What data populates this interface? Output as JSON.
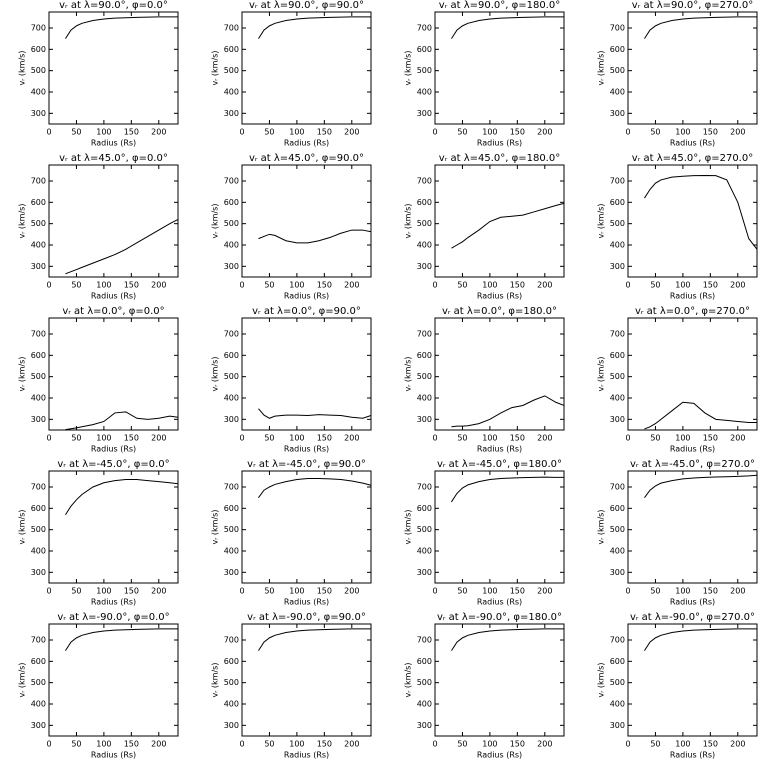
{
  "chart_data": [
    {
      "type": "line",
      "title": "vᵣ at λ=90.0°, φ=0.0°",
      "xlabel": "Radius (Rs)",
      "ylabel": "vᵣ (km/s)",
      "x": [
        30,
        40,
        50,
        60,
        80,
        100,
        120,
        140,
        160,
        180,
        200,
        220,
        235
      ],
      "values": [
        650,
        690,
        710,
        722,
        735,
        742,
        746,
        748,
        750,
        751,
        752,
        752,
        752
      ],
      "xlim": [
        0,
        235
      ],
      "ylim": [
        250,
        775
      ],
      "xticks": [
        0,
        50,
        100,
        150,
        200
      ],
      "yticks": [
        300,
        400,
        500,
        600,
        700
      ]
    },
    {
      "type": "line",
      "title": "vᵣ at λ=90.0°, φ=90.0°",
      "xlabel": "Radius (Rs)",
      "ylabel": "vᵣ (km/s)",
      "x": [
        30,
        40,
        50,
        60,
        80,
        100,
        120,
        140,
        160,
        180,
        200,
        220,
        235
      ],
      "values": [
        650,
        690,
        710,
        722,
        735,
        742,
        746,
        748,
        750,
        751,
        752,
        752,
        752
      ],
      "xlim": [
        0,
        235
      ],
      "ylim": [
        250,
        775
      ],
      "xticks": [
        0,
        50,
        100,
        150,
        200
      ],
      "yticks": [
        300,
        400,
        500,
        600,
        700
      ]
    },
    {
      "type": "line",
      "title": "vᵣ at λ=90.0°, φ=180.0°",
      "xlabel": "Radius (Rs)",
      "ylabel": "vᵣ (km/s)",
      "x": [
        30,
        40,
        50,
        60,
        80,
        100,
        120,
        140,
        160,
        180,
        200,
        220,
        235
      ],
      "values": [
        650,
        690,
        710,
        722,
        735,
        742,
        746,
        748,
        750,
        751,
        752,
        752,
        752
      ],
      "xlim": [
        0,
        235
      ],
      "ylim": [
        250,
        775
      ],
      "xticks": [
        0,
        50,
        100,
        150,
        200
      ],
      "yticks": [
        300,
        400,
        500,
        600,
        700
      ]
    },
    {
      "type": "line",
      "title": "vᵣ at λ=90.0°, φ=270.0°",
      "xlabel": "Radius (Rs)",
      "ylabel": "vᵣ (km/s)",
      "x": [
        30,
        40,
        50,
        60,
        80,
        100,
        120,
        140,
        160,
        180,
        200,
        220,
        235
      ],
      "values": [
        650,
        690,
        710,
        722,
        735,
        742,
        746,
        748,
        750,
        751,
        752,
        752,
        752
      ],
      "xlim": [
        0,
        235
      ],
      "ylim": [
        250,
        775
      ],
      "xticks": [
        0,
        50,
        100,
        150,
        200
      ],
      "yticks": [
        300,
        400,
        500,
        600,
        700
      ]
    },
    {
      "type": "line",
      "title": "vᵣ at λ=45.0°, φ=0.0°",
      "xlabel": "Radius (Rs)",
      "ylabel": "vᵣ (km/s)",
      "x": [
        30,
        40,
        50,
        60,
        80,
        100,
        120,
        140,
        160,
        180,
        200,
        220,
        235
      ],
      "values": [
        265,
        275,
        285,
        295,
        315,
        335,
        355,
        380,
        410,
        440,
        470,
        500,
        520
      ],
      "xlim": [
        0,
        235
      ],
      "ylim": [
        250,
        775
      ],
      "xticks": [
        0,
        50,
        100,
        150,
        200
      ],
      "yticks": [
        300,
        400,
        500,
        600,
        700
      ]
    },
    {
      "type": "line",
      "title": "vᵣ at λ=45.0°, φ=90.0°",
      "xlabel": "Radius (Rs)",
      "ylabel": "vᵣ (km/s)",
      "x": [
        30,
        40,
        50,
        60,
        80,
        100,
        120,
        140,
        160,
        180,
        200,
        220,
        235
      ],
      "values": [
        430,
        440,
        450,
        445,
        420,
        410,
        410,
        420,
        435,
        455,
        470,
        470,
        462
      ],
      "xlim": [
        0,
        235
      ],
      "ylim": [
        250,
        775
      ],
      "xticks": [
        0,
        50,
        100,
        150,
        200
      ],
      "yticks": [
        300,
        400,
        500,
        600,
        700
      ]
    },
    {
      "type": "line",
      "title": "vᵣ at λ=45.0°, φ=180.0°",
      "xlabel": "Radius (Rs)",
      "ylabel": "vᵣ (km/s)",
      "x": [
        30,
        40,
        50,
        60,
        80,
        100,
        120,
        140,
        160,
        180,
        200,
        220,
        235
      ],
      "values": [
        385,
        400,
        415,
        435,
        470,
        510,
        530,
        535,
        540,
        555,
        570,
        585,
        595
      ],
      "xlim": [
        0,
        235
      ],
      "ylim": [
        250,
        775
      ],
      "xticks": [
        0,
        50,
        100,
        150,
        200
      ],
      "yticks": [
        300,
        400,
        500,
        600,
        700
      ]
    },
    {
      "type": "line",
      "title": "vᵣ at λ=45.0°, φ=270.0°",
      "xlabel": "Radius (Rs)",
      "ylabel": "vᵣ (km/s)",
      "x": [
        30,
        40,
        50,
        60,
        80,
        100,
        120,
        140,
        160,
        180,
        200,
        220,
        235
      ],
      "values": [
        620,
        660,
        690,
        705,
        718,
        722,
        725,
        726,
        725,
        705,
        600,
        430,
        380
      ],
      "xlim": [
        0,
        235
      ],
      "ylim": [
        250,
        775
      ],
      "xticks": [
        0,
        50,
        100,
        150,
        200
      ],
      "yticks": [
        300,
        400,
        500,
        600,
        700
      ]
    },
    {
      "type": "line",
      "title": "vᵣ at λ=0.0°, φ=0.0°",
      "xlabel": "Radius (Rs)",
      "ylabel": "vᵣ (km/s)",
      "x": [
        30,
        40,
        50,
        60,
        80,
        100,
        120,
        140,
        160,
        180,
        200,
        220,
        235
      ],
      "values": [
        252,
        256,
        260,
        265,
        275,
        290,
        330,
        335,
        305,
        300,
        305,
        315,
        310
      ],
      "xlim": [
        0,
        235
      ],
      "ylim": [
        250,
        775
      ],
      "xticks": [
        0,
        50,
        100,
        150,
        200
      ],
      "yticks": [
        300,
        400,
        500,
        600,
        700
      ]
    },
    {
      "type": "line",
      "title": "vᵣ at λ=0.0°, φ=90.0°",
      "xlabel": "Radius (Rs)",
      "ylabel": "vᵣ (km/s)",
      "x": [
        30,
        40,
        50,
        60,
        80,
        100,
        120,
        140,
        160,
        180,
        200,
        220,
        235
      ],
      "values": [
        350,
        320,
        305,
        315,
        320,
        320,
        318,
        322,
        320,
        318,
        310,
        305,
        318
      ],
      "xlim": [
        0,
        235
      ],
      "ylim": [
        250,
        775
      ],
      "xticks": [
        0,
        50,
        100,
        150,
        200
      ],
      "yticks": [
        300,
        400,
        500,
        600,
        700
      ]
    },
    {
      "type": "line",
      "title": "vᵣ at λ=0.0°, φ=180.0°",
      "xlabel": "Radius (Rs)",
      "ylabel": "vᵣ (km/s)",
      "x": [
        30,
        40,
        50,
        60,
        80,
        100,
        120,
        140,
        160,
        180,
        200,
        220,
        235
      ],
      "values": [
        265,
        268,
        268,
        270,
        280,
        300,
        330,
        355,
        365,
        390,
        410,
        380,
        365
      ],
      "xlim": [
        0,
        235
      ],
      "ylim": [
        250,
        775
      ],
      "xticks": [
        0,
        50,
        100,
        150,
        200
      ],
      "yticks": [
        300,
        400,
        500,
        600,
        700
      ]
    },
    {
      "type": "line",
      "title": "vᵣ at λ=0.0°, φ=270.0°",
      "xlabel": "Radius (Rs)",
      "ylabel": "vᵣ (km/s)",
      "x": [
        30,
        40,
        50,
        60,
        80,
        100,
        120,
        140,
        160,
        180,
        200,
        220,
        235
      ],
      "values": [
        255,
        265,
        280,
        300,
        340,
        380,
        375,
        330,
        300,
        295,
        290,
        285,
        285
      ],
      "xlim": [
        0,
        235
      ],
      "ylim": [
        250,
        775
      ],
      "xticks": [
        0,
        50,
        100,
        150,
        200
      ],
      "yticks": [
        300,
        400,
        500,
        600,
        700
      ]
    },
    {
      "type": "line",
      "title": "vᵣ at λ=-45.0°, φ=0.0°",
      "xlabel": "Radius (Rs)",
      "ylabel": "vᵣ (km/s)",
      "x": [
        30,
        40,
        50,
        60,
        80,
        100,
        120,
        140,
        160,
        180,
        200,
        220,
        235
      ],
      "values": [
        570,
        610,
        640,
        665,
        700,
        720,
        730,
        735,
        735,
        730,
        725,
        720,
        715
      ],
      "xlim": [
        0,
        235
      ],
      "ylim": [
        250,
        775
      ],
      "xticks": [
        0,
        50,
        100,
        150,
        200
      ],
      "yticks": [
        300,
        400,
        500,
        600,
        700
      ]
    },
    {
      "type": "line",
      "title": "vᵣ at λ=-45.0°, φ=90.0°",
      "xlabel": "Radius (Rs)",
      "ylabel": "vᵣ (km/s)",
      "x": [
        30,
        40,
        50,
        60,
        80,
        100,
        120,
        140,
        160,
        180,
        200,
        220,
        235
      ],
      "values": [
        650,
        685,
        700,
        712,
        725,
        735,
        740,
        740,
        738,
        735,
        728,
        718,
        708
      ],
      "xlim": [
        0,
        235
      ],
      "ylim": [
        250,
        775
      ],
      "xticks": [
        0,
        50,
        100,
        150,
        200
      ],
      "yticks": [
        300,
        400,
        500,
        600,
        700
      ]
    },
    {
      "type": "line",
      "title": "vᵣ at λ=-45.0°, φ=180.0°",
      "xlabel": "Radius (Rs)",
      "ylabel": "vᵣ (km/s)",
      "x": [
        30,
        40,
        50,
        60,
        80,
        100,
        120,
        140,
        160,
        180,
        200,
        220,
        235
      ],
      "values": [
        630,
        670,
        695,
        710,
        725,
        735,
        740,
        742,
        744,
        745,
        746,
        745,
        745
      ],
      "xlim": [
        0,
        235
      ],
      "ylim": [
        250,
        775
      ],
      "xticks": [
        0,
        50,
        100,
        150,
        200
      ],
      "yticks": [
        300,
        400,
        500,
        600,
        700
      ]
    },
    {
      "type": "line",
      "title": "vᵣ at λ=-45.0°, φ=270.0°",
      "xlabel": "Radius (Rs)",
      "ylabel": "vᵣ (km/s)",
      "x": [
        30,
        40,
        50,
        60,
        80,
        100,
        120,
        140,
        160,
        180,
        200,
        220,
        235
      ],
      "values": [
        650,
        685,
        705,
        718,
        730,
        738,
        742,
        745,
        747,
        748,
        750,
        752,
        755
      ],
      "xlim": [
        0,
        235
      ],
      "ylim": [
        250,
        775
      ],
      "xticks": [
        0,
        50,
        100,
        150,
        200
      ],
      "yticks": [
        300,
        400,
        500,
        600,
        700
      ]
    },
    {
      "type": "line",
      "title": "vᵣ at λ=-90.0°, φ=0.0°",
      "xlabel": "Radius (Rs)",
      "ylabel": "vᵣ (km/s)",
      "x": [
        30,
        40,
        50,
        60,
        80,
        100,
        120,
        140,
        160,
        180,
        200,
        220,
        235
      ],
      "values": [
        650,
        690,
        710,
        722,
        735,
        742,
        746,
        748,
        750,
        751,
        752,
        752,
        752
      ],
      "xlim": [
        0,
        235
      ],
      "ylim": [
        250,
        775
      ],
      "xticks": [
        0,
        50,
        100,
        150,
        200
      ],
      "yticks": [
        300,
        400,
        500,
        600,
        700
      ]
    },
    {
      "type": "line",
      "title": "vᵣ at λ=-90.0°, φ=90.0°",
      "xlabel": "Radius (Rs)",
      "ylabel": "vᵣ (km/s)",
      "x": [
        30,
        40,
        50,
        60,
        80,
        100,
        120,
        140,
        160,
        180,
        200,
        220,
        235
      ],
      "values": [
        650,
        690,
        710,
        722,
        735,
        742,
        746,
        748,
        750,
        751,
        752,
        752,
        752
      ],
      "xlim": [
        0,
        235
      ],
      "ylim": [
        250,
        775
      ],
      "xticks": [
        0,
        50,
        100,
        150,
        200
      ],
      "yticks": [
        300,
        400,
        500,
        600,
        700
      ]
    },
    {
      "type": "line",
      "title": "vᵣ at λ=-90.0°, φ=180.0°",
      "xlabel": "Radius (Rs)",
      "ylabel": "vᵣ (km/s)",
      "x": [
        30,
        40,
        50,
        60,
        80,
        100,
        120,
        140,
        160,
        180,
        200,
        220,
        235
      ],
      "values": [
        650,
        690,
        710,
        722,
        735,
        742,
        746,
        748,
        750,
        751,
        752,
        752,
        752
      ],
      "xlim": [
        0,
        235
      ],
      "ylim": [
        250,
        775
      ],
      "xticks": [
        0,
        50,
        100,
        150,
        200
      ],
      "yticks": [
        300,
        400,
        500,
        600,
        700
      ]
    },
    {
      "type": "line",
      "title": "vᵣ at λ=-90.0°, φ=270.0°",
      "xlabel": "Radius (Rs)",
      "ylabel": "vᵣ (km/s)",
      "x": [
        30,
        40,
        50,
        60,
        80,
        100,
        120,
        140,
        160,
        180,
        200,
        220,
        235
      ],
      "values": [
        650,
        690,
        710,
        722,
        735,
        742,
        746,
        748,
        750,
        751,
        752,
        752,
        752
      ],
      "xlim": [
        0,
        235
      ],
      "ylim": [
        250,
        775
      ],
      "xticks": [
        0,
        50,
        100,
        150,
        200
      ],
      "yticks": [
        300,
        400,
        500,
        600,
        700
      ]
    }
  ]
}
